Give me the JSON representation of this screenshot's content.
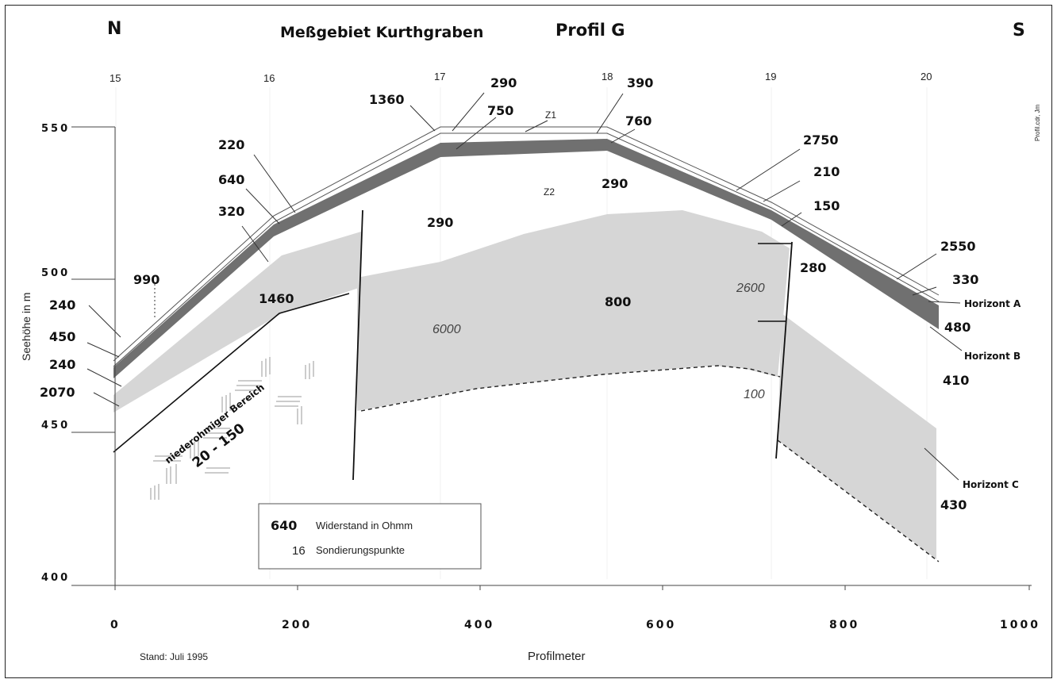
{
  "header": {
    "north": "N",
    "south": "S",
    "title": "Meßgebiet Kurthgraben",
    "profile": "Profil G",
    "side_note": "Profil.cdr, Jm"
  },
  "axes": {
    "x_label": "Profilmeter",
    "y_label": "Seehöhe in m",
    "x_ticks": [
      "0",
      "200",
      "400",
      "600",
      "800",
      "1000"
    ],
    "y_ticks": [
      "550",
      "500",
      "450",
      "400"
    ]
  },
  "sounding_points": [
    "15",
    "16",
    "17",
    "18",
    "19",
    "20"
  ],
  "zones": {
    "z1": "Z1",
    "z2": "Z2"
  },
  "horizons": {
    "a": "Horizont A",
    "b": "Horizont B",
    "c": "Horizont C"
  },
  "low_resistivity": {
    "label": "niederohmiger Bereich",
    "range": "20 - 150"
  },
  "resistivities": {
    "r1360": "1360",
    "r290a": "290",
    "r750": "750",
    "r390": "390",
    "r760": "760",
    "r220": "220",
    "r640": "640",
    "r320": "320",
    "r290b": "290",
    "r290c": "290",
    "r2750": "2750",
    "r210": "210",
    "r150": "150",
    "r280": "280",
    "r2550": "2550",
    "r330": "330",
    "r480": "480",
    "r410": "410",
    "r430": "430",
    "r990": "990",
    "r240a": "240",
    "r450": "450",
    "r240b": "240",
    "r2070": "2070",
    "r1460": "1460",
    "r800": "800",
    "r6000": "6000",
    "r2600": "2600",
    "r100": "100"
  },
  "legend": {
    "value_sample": "640",
    "value_text": "Widerstand in Ohmm",
    "point_sample": "16",
    "point_text": "Sondierungspunkte"
  },
  "footer": {
    "stand": "Stand: Juli 1995"
  },
  "colors": {
    "horizon_a_fill": "#6f6f6f",
    "horizon_c_fill": "#d4d4d4",
    "line": "#222222"
  }
}
